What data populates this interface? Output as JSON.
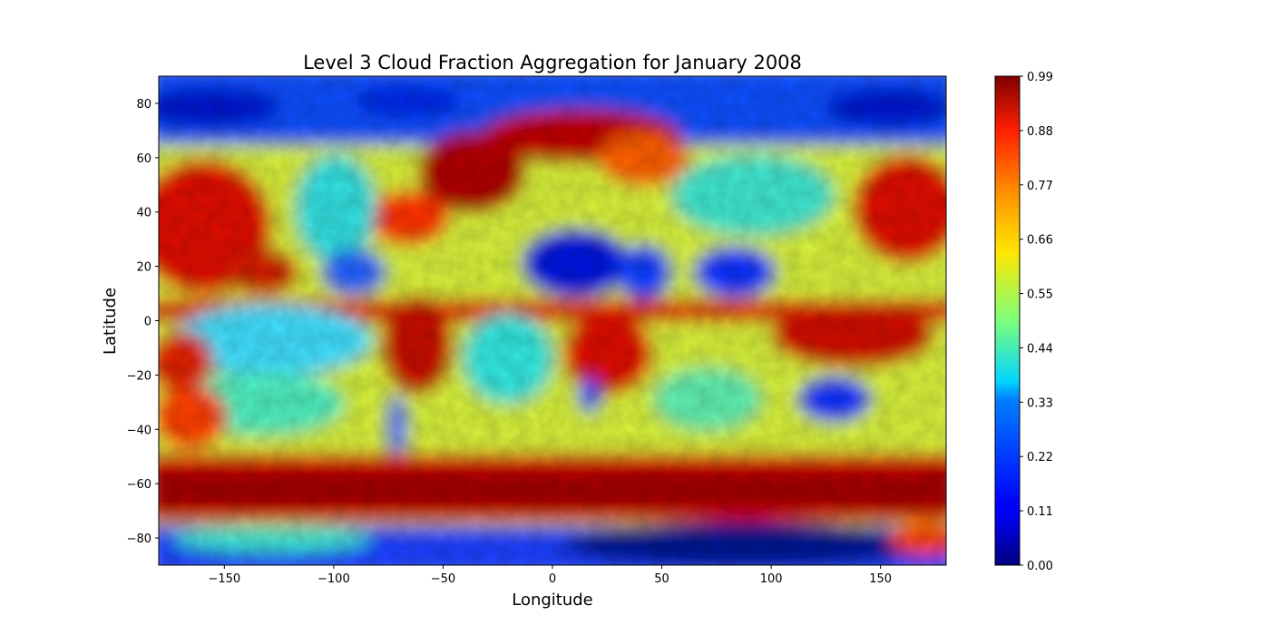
{
  "chart_data": {
    "type": "heatmap",
    "title": "Level 3 Cloud Fraction Aggregation for January 2008",
    "xlabel": "Longitude",
    "ylabel": "Latitude",
    "xlim": [
      -180,
      180
    ],
    "ylim": [
      -90,
      90
    ],
    "x_ticks": [
      -150,
      -100,
      -50,
      0,
      50,
      100,
      150
    ],
    "x_tick_labels": [
      "−150",
      "−100",
      "−50",
      "0",
      "50",
      "100",
      "150"
    ],
    "y_ticks": [
      -80,
      -60,
      -40,
      -20,
      0,
      20,
      40,
      60,
      80
    ],
    "y_tick_labels": [
      "−80",
      "−60",
      "−40",
      "−20",
      "0",
      "20",
      "40",
      "60",
      "80"
    ],
    "colormap": "jet",
    "colorbar": {
      "range": [
        0.0,
        0.99
      ],
      "ticks": [
        0.0,
        0.11,
        0.22,
        0.33,
        0.44,
        0.55,
        0.66,
        0.77,
        0.88,
        0.99
      ],
      "tick_labels": [
        "0.00",
        "0.11",
        "0.22",
        "0.33",
        "0.44",
        "0.55",
        "0.66",
        "0.77",
        "0.88",
        "0.99"
      ]
    },
    "grid": false
  }
}
